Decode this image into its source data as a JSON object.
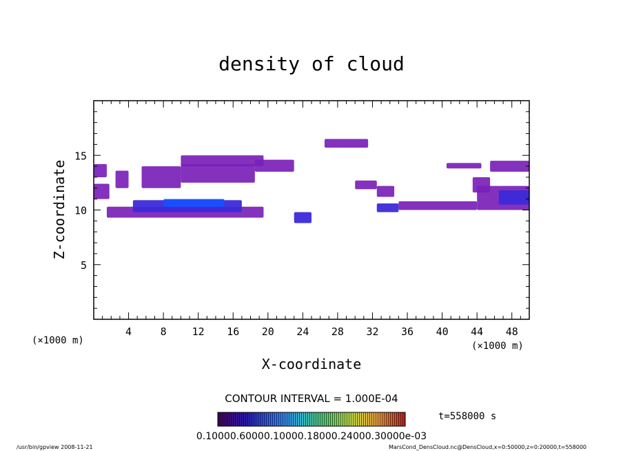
{
  "chart_data": {
    "type": "heatmap",
    "title": "density of cloud",
    "xlabel": "X-coordinate",
    "ylabel": "Z-coordinate",
    "x_unit_left": "(×1000 m)",
    "x_unit_right": "(×1000 m)",
    "xlim": [
      0,
      50
    ],
    "ylim": [
      0,
      20
    ],
    "x_ticks": [
      4,
      8,
      12,
      16,
      20,
      24,
      28,
      32,
      36,
      40,
      44,
      48
    ],
    "y_ticks": [
      5,
      10,
      15
    ],
    "contour_interval": "CONTOUR INTERVAL = 1.000E-04",
    "time_label": "t=558000 s",
    "colorbar_labels": "0.10000.60000.10000.18000.24000.30000e-03",
    "colors": {
      "low": "#7a20b8",
      "mid": "#3b2ad8",
      "high": "#1550ff",
      "peak": "#2b7cff"
    },
    "cloud_regions": [
      {
        "x": [
          0.0,
          1.5
        ],
        "z": [
          13.0,
          14.2
        ],
        "level": "low"
      },
      {
        "x": [
          0.0,
          1.8
        ],
        "z": [
          11.0,
          12.4
        ],
        "level": "low"
      },
      {
        "x": [
          2.5,
          4.0
        ],
        "z": [
          12.0,
          13.6
        ],
        "level": "low"
      },
      {
        "x": [
          5.5,
          10.0
        ],
        "z": [
          12.0,
          14.0
        ],
        "level": "low"
      },
      {
        "x": [
          10.0,
          19.5
        ],
        "z": [
          14.0,
          15.0
        ],
        "level": "low"
      },
      {
        "x": [
          10.0,
          18.5
        ],
        "z": [
          12.5,
          14.2
        ],
        "level": "low"
      },
      {
        "x": [
          18.5,
          23.0
        ],
        "z": [
          13.5,
          14.6
        ],
        "level": "low"
      },
      {
        "x": [
          1.5,
          19.5
        ],
        "z": [
          9.3,
          10.3
        ],
        "level": "low"
      },
      {
        "x": [
          4.5,
          17.0
        ],
        "z": [
          9.8,
          10.9
        ],
        "level": "mid"
      },
      {
        "x": [
          8.0,
          15.0
        ],
        "z": [
          10.3,
          11.0
        ],
        "level": "high"
      },
      {
        "x": [
          23.0,
          25.0
        ],
        "z": [
          8.8,
          9.8
        ],
        "level": "mid"
      },
      {
        "x": [
          26.5,
          31.5
        ],
        "z": [
          15.7,
          16.5
        ],
        "level": "low"
      },
      {
        "x": [
          30.0,
          32.5
        ],
        "z": [
          11.9,
          12.7
        ],
        "level": "low"
      },
      {
        "x": [
          32.5,
          34.5
        ],
        "z": [
          11.2,
          12.2
        ],
        "level": "low"
      },
      {
        "x": [
          32.5,
          35.0
        ],
        "z": [
          9.8,
          10.6
        ],
        "level": "mid"
      },
      {
        "x": [
          35.0,
          44.0
        ],
        "z": [
          10.0,
          10.8
        ],
        "level": "low"
      },
      {
        "x": [
          40.5,
          44.5
        ],
        "z": [
          13.8,
          14.3
        ],
        "level": "low"
      },
      {
        "x": [
          43.5,
          45.5
        ],
        "z": [
          11.6,
          13.0
        ],
        "level": "low"
      },
      {
        "x": [
          45.5,
          50.0
        ],
        "z": [
          13.5,
          14.5
        ],
        "level": "low"
      },
      {
        "x": [
          44.0,
          50.0
        ],
        "z": [
          10.0,
          12.2
        ],
        "level": "low"
      },
      {
        "x": [
          46.5,
          50.0
        ],
        "z": [
          10.5,
          11.8
        ],
        "level": "mid"
      }
    ],
    "grid": false,
    "legend": "bottom-center"
  },
  "footer": {
    "left": "/usr/bin/gpview  2008-11-21",
    "right": "MarsCond_DensCloud.nc@DensCloud,x=0:50000,z=0:20000,t=558000"
  }
}
